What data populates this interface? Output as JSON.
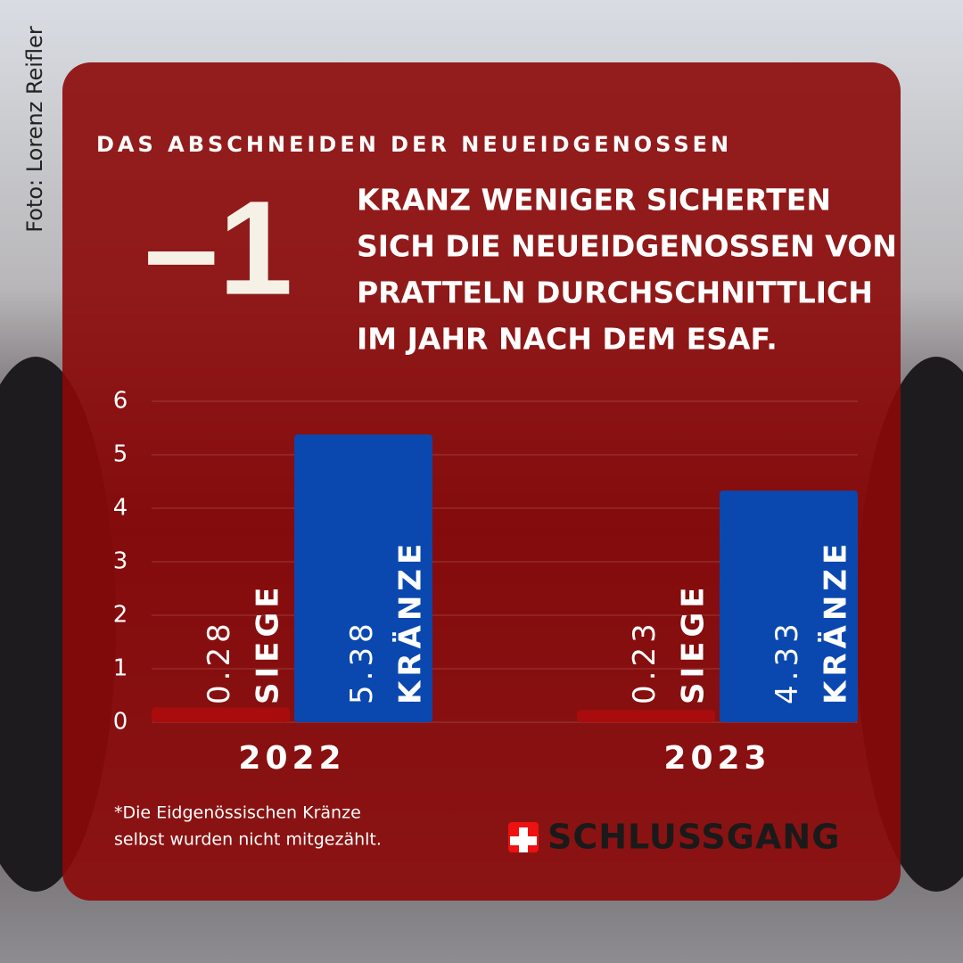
{
  "photo_credit": "Foto: Lorenz Reifler",
  "chart_data": {
    "type": "bar",
    "kicker": "DAS ABSCHNEIDEN DER NEUEIDGENOSSEN",
    "big_number": "–1",
    "headline": [
      "KRANZ WENIGER SICHERTEN",
      "SICH DIE NEUEIDGENOSSEN VON",
      "PRATTELN DURCHSCHNITTLICH",
      "IM JAHR NACH DEM ESAF."
    ],
    "categories": [
      "2022",
      "2023"
    ],
    "series": [
      {
        "name": "SIEGE",
        "color": "#a80c0c",
        "values": [
          0.28,
          0.23
        ]
      },
      {
        "name": "KRÄNZE",
        "color": "#0a48b0",
        "values": [
          5.38,
          4.33
        ]
      }
    ],
    "ylim": [
      0,
      6
    ],
    "yticks": [
      0,
      1,
      2,
      3,
      4,
      5,
      6
    ],
    "grid": true,
    "footnote": [
      "*Die Eidgenössischen Kränze",
      "selbst wurden nicht mitgezählt."
    ]
  },
  "logo": "SCHLUSSGANG"
}
